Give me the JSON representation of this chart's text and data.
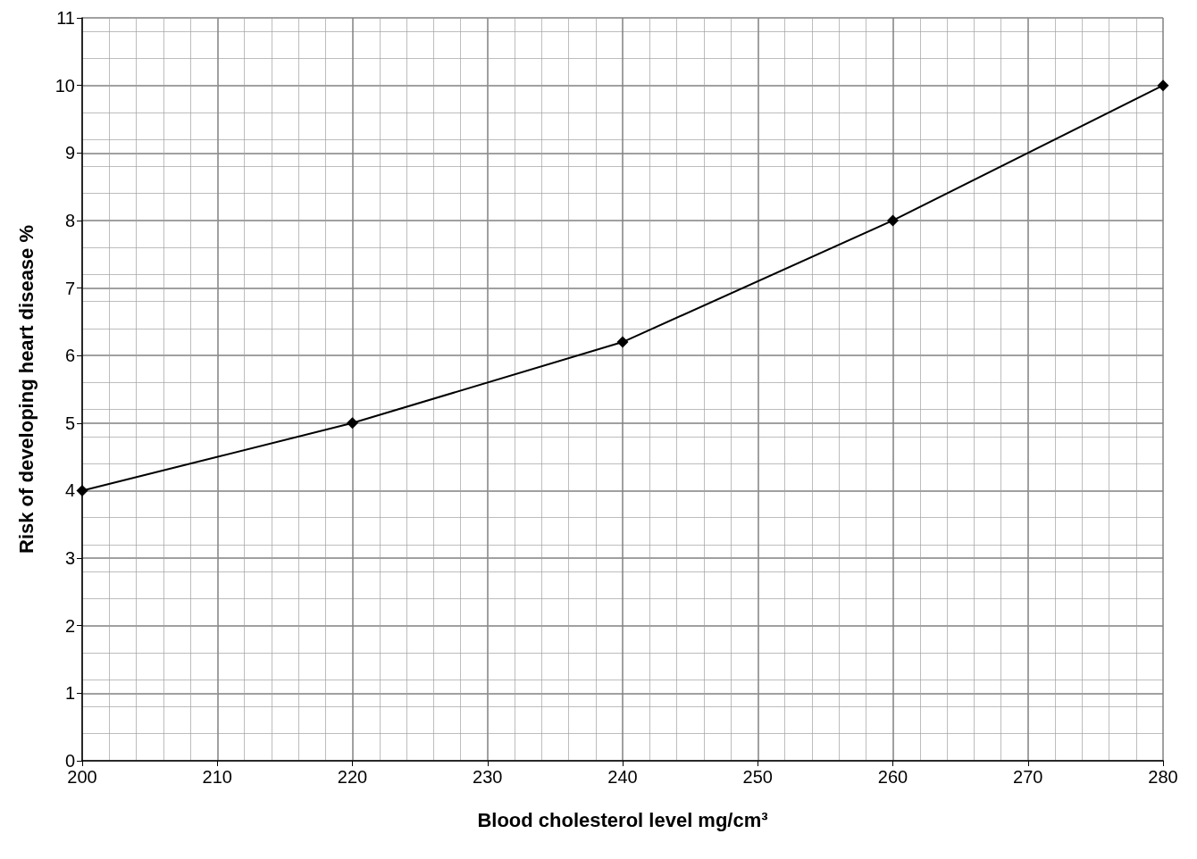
{
  "chart_data": {
    "type": "line",
    "xlabel": "Blood cholesterol level mg/cm³",
    "ylabel": "Risk of developing heart disease %",
    "x": [
      200,
      220,
      240,
      260,
      280
    ],
    "series": [
      {
        "color": "#000000",
        "values": [
          4,
          5,
          6.2,
          8,
          10
        ]
      }
    ],
    "xlim": [
      200,
      280
    ],
    "xticks": [
      200,
      210,
      220,
      230,
      240,
      250,
      260,
      270,
      280
    ],
    "ylim": [
      0,
      11
    ],
    "yticks": [
      0,
      1,
      2,
      3,
      4,
      5,
      6,
      7,
      8,
      9,
      10,
      11
    ],
    "grid": true,
    "marker": "diamond",
    "line_style": "solid"
  }
}
